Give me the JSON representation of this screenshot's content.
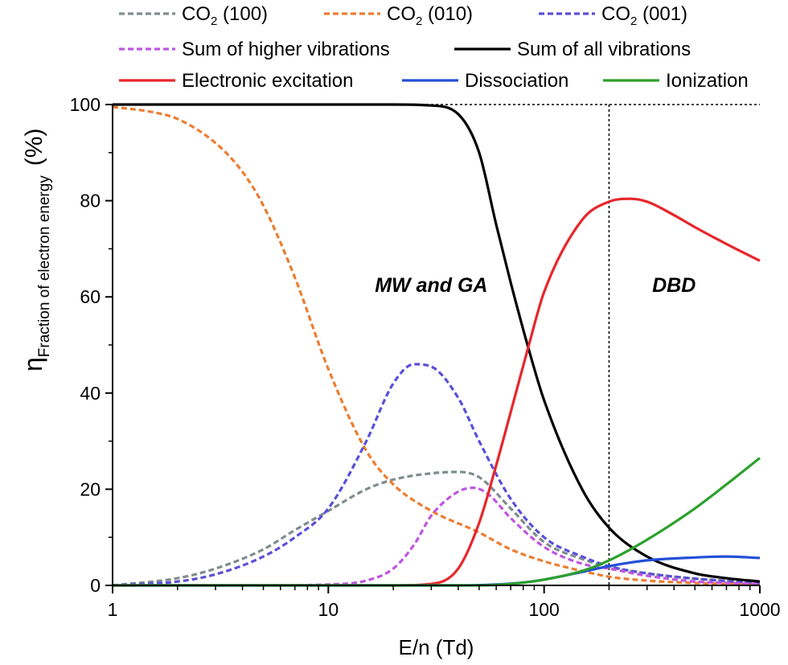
{
  "chart_data": {
    "type": "line",
    "title": "",
    "xlabel": "E/n (Td)",
    "ylabel": {
      "symbol": "η",
      "subscript": "Fraction of electron energy",
      "unit": "(%)"
    },
    "xscale": "log",
    "xlim": [
      1,
      1000
    ],
    "ylim": [
      0,
      100
    ],
    "x_ticks": [
      {
        "value": 1,
        "label": "1"
      },
      {
        "value": 10,
        "label": "10"
      },
      {
        "value": 100,
        "label": "100"
      },
      {
        "value": 1000,
        "label": "1000"
      }
    ],
    "y_ticks": [
      {
        "value": 0,
        "label": "0"
      },
      {
        "value": 20,
        "label": "20"
      },
      {
        "value": 40,
        "label": "40"
      },
      {
        "value": 60,
        "label": "60"
      },
      {
        "value": 80,
        "label": "80"
      },
      {
        "value": 100,
        "label": "100"
      }
    ],
    "series": [
      {
        "id": "co2-100",
        "legend": {
          "base": "CO",
          "sub": "2",
          "tail": " (100)"
        },
        "color": "#7f8c8d",
        "dashed": true,
        "x": [
          1,
          2,
          3,
          5,
          7,
          10,
          15,
          20,
          30,
          40,
          50,
          70,
          100,
          150,
          200,
          300,
          500,
          700,
          1000
        ],
        "y": [
          0,
          1.5,
          3.5,
          7.5,
          11.5,
          15.5,
          20,
          22,
          23.3,
          23.6,
          22.5,
          16,
          9,
          5.5,
          3.8,
          2.5,
          1.4,
          1,
          0.7
        ]
      },
      {
        "id": "co2-010",
        "legend": {
          "base": "CO",
          "sub": "2",
          "tail": " (010)"
        },
        "color": "#ed7d31",
        "dashed": true,
        "x": [
          1,
          1.5,
          2,
          3,
          4,
          5,
          7,
          10,
          15,
          20,
          30,
          50,
          70,
          100,
          150,
          200,
          300,
          500,
          1000
        ],
        "y": [
          99.5,
          98.5,
          97,
          92,
          86,
          79,
          64,
          45,
          28,
          21,
          15.5,
          11,
          7.5,
          5,
          3,
          1.8,
          1,
          0.5,
          0.2
        ]
      },
      {
        "id": "co2-001",
        "legend": {
          "base": "CO",
          "sub": "2",
          "tail": " (001)"
        },
        "color": "#5b4fd9",
        "dashed": true,
        "x": [
          1,
          2,
          3,
          5,
          7,
          10,
          15,
          20,
          25,
          30,
          40,
          50,
          70,
          100,
          150,
          200,
          300,
          500,
          700,
          1000
        ],
        "y": [
          0,
          0.8,
          2.3,
          6,
          10,
          16,
          30,
          42,
          46,
          45.5,
          39,
          30,
          18,
          10,
          6,
          4,
          2.5,
          1.4,
          0.9,
          0.5
        ]
      },
      {
        "id": "sum-higher",
        "legend": {
          "base": "Sum of higher vibrations",
          "sub": "",
          "tail": ""
        },
        "color": "#c055e0",
        "dashed": true,
        "x": [
          1,
          5,
          10,
          15,
          20,
          25,
          30,
          40,
          47,
          55,
          70,
          100,
          150,
          200,
          300,
          500,
          700,
          1000
        ],
        "y": [
          0,
          0,
          0.2,
          1,
          3.5,
          8.5,
          14.5,
          19.5,
          20.3,
          19,
          14,
          8,
          4.5,
          3.5,
          2,
          0.8,
          0.5,
          0.3
        ]
      },
      {
        "id": "sum-all",
        "legend": {
          "base": "Sum of all vibrations",
          "sub": "",
          "tail": ""
        },
        "color": "#000000",
        "dashed": false,
        "x": [
          1,
          10,
          20,
          30,
          40,
          50,
          60,
          70,
          85,
          100,
          150,
          200,
          300,
          500,
          700,
          1000
        ],
        "y": [
          100,
          100,
          100,
          99.8,
          98,
          90,
          75,
          63,
          49,
          38.5,
          20,
          12,
          6,
          2.5,
          1.5,
          0.8
        ]
      },
      {
        "id": "electronic",
        "legend": {
          "base": "Electronic excitation",
          "sub": "",
          "tail": ""
        },
        "color": "#e8262b",
        "dashed": false,
        "x": [
          1,
          20,
          30,
          40,
          50,
          60,
          70,
          85,
          100,
          150,
          200,
          250,
          300,
          400,
          500,
          700,
          1000
        ],
        "y": [
          0,
          0,
          0.3,
          3.5,
          13,
          25,
          36,
          50,
          61,
          76,
          79.8,
          80.4,
          79.8,
          77,
          74.5,
          71,
          67.5
        ]
      },
      {
        "id": "dissociation",
        "legend": {
          "base": "Dissociation",
          "sub": "",
          "tail": ""
        },
        "color": "#2450d8",
        "dashed": false,
        "x": [
          1,
          40,
          60,
          80,
          100,
          150,
          200,
          300,
          500,
          700,
          1000
        ],
        "y": [
          0,
          0,
          0.2,
          0.6,
          1.2,
          2.8,
          4,
          5.2,
          5.8,
          6,
          5.7
        ]
      },
      {
        "id": "ionization",
        "legend": {
          "base": "Ionization",
          "sub": "",
          "tail": ""
        },
        "color": "#2ca02c",
        "dashed": false,
        "x": [
          1,
          50,
          70,
          100,
          150,
          200,
          300,
          500,
          700,
          1000
        ],
        "y": [
          0,
          0,
          0.3,
          1.2,
          3,
          5.2,
          9.5,
          16,
          21,
          26.5
        ]
      }
    ],
    "reference_lines": [
      {
        "id": "hline-100",
        "orientation": "horizontal",
        "value": 100,
        "style": "dotted"
      },
      {
        "id": "vline-200",
        "orientation": "vertical",
        "value": 200,
        "style": "dotted"
      }
    ],
    "annotations": [
      {
        "id": "mw-ga",
        "text": "MW and GA",
        "x": 30,
        "y": 61
      },
      {
        "id": "dbd",
        "text": "DBD",
        "x": 400,
        "y": 61
      }
    ],
    "legend_position": "top"
  }
}
